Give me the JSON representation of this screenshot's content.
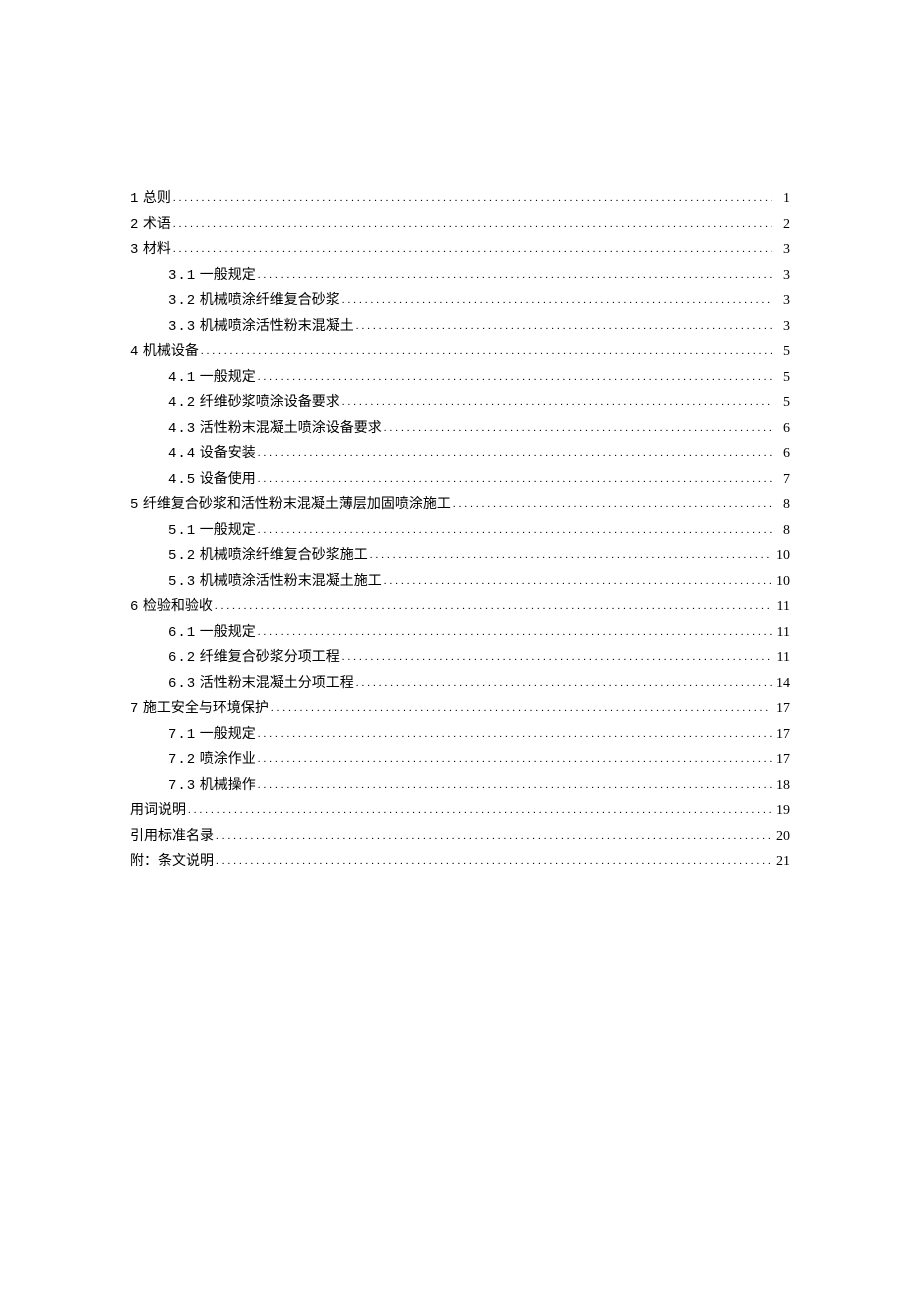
{
  "toc": [
    {
      "indent": false,
      "num": "1",
      "title": " 总则",
      "page": "1"
    },
    {
      "indent": false,
      "num": "2",
      "title": " 术语",
      "page": "2"
    },
    {
      "indent": false,
      "num": "3",
      "title": " 材料",
      "page": "3"
    },
    {
      "indent": true,
      "num": "3.1",
      "title": "  一般规定",
      "page": "3"
    },
    {
      "indent": true,
      "num": "3.2",
      "title": "  机械喷涂纤维复合砂浆",
      "page": "3"
    },
    {
      "indent": true,
      "num": "3.3",
      "title": "  机械喷涂活性粉末混凝土",
      "page": "3"
    },
    {
      "indent": false,
      "num": "4",
      "title": " 机械设备",
      "page": "5"
    },
    {
      "indent": true,
      "num": "4.1",
      "title": "  一般规定",
      "page": "5"
    },
    {
      "indent": true,
      "num": "4.2",
      "title": "  纤维砂浆喷涂设备要求",
      "page": "5"
    },
    {
      "indent": true,
      "num": "4.3",
      "title": "  活性粉末混凝土喷涂设备要求",
      "page": "6"
    },
    {
      "indent": true,
      "num": "4.4",
      "title": "  设备安装",
      "page": "6"
    },
    {
      "indent": true,
      "num": "4.5",
      "title": "  设备使用",
      "page": "7"
    },
    {
      "indent": false,
      "num": "5",
      "title": " 纤维复合砂浆和活性粉末混凝土薄层加固喷涂施工",
      "page": "8"
    },
    {
      "indent": true,
      "num": "5.1",
      "title": "  一般规定",
      "page": "8"
    },
    {
      "indent": true,
      "num": "5.2",
      "title": "  机械喷涂纤维复合砂浆施工",
      "page": "10"
    },
    {
      "indent": true,
      "num": "5.3",
      "title": "  机械喷涂活性粉末混凝土施工",
      "page": "10"
    },
    {
      "indent": false,
      "num": "6",
      "title": " 检验和验收",
      "page": "11"
    },
    {
      "indent": true,
      "num": "6.1",
      "title": "  一般规定",
      "page": "11"
    },
    {
      "indent": true,
      "num": "6.2",
      "title": "  纤维复合砂浆分项工程",
      "page": "11"
    },
    {
      "indent": true,
      "num": "6.3",
      "title": "  活性粉末混凝土分项工程",
      "page": "14"
    },
    {
      "indent": false,
      "num": "7",
      "title": " 施工安全与环境保护",
      "page": "17"
    },
    {
      "indent": true,
      "num": "7.1",
      "title": "  一般规定",
      "page": "17"
    },
    {
      "indent": true,
      "num": "7.2",
      "title": "  喷涂作业",
      "page": "17"
    },
    {
      "indent": true,
      "num": "7.3",
      "title": "  机械操作",
      "page": "18"
    },
    {
      "indent": false,
      "num": "",
      "title": "用词说明",
      "page": "19"
    },
    {
      "indent": false,
      "num": "",
      "title": "引用标准名录",
      "page": "20"
    },
    {
      "indent": false,
      "num": "",
      "title": "附：条文说明",
      "page": "21"
    }
  ]
}
